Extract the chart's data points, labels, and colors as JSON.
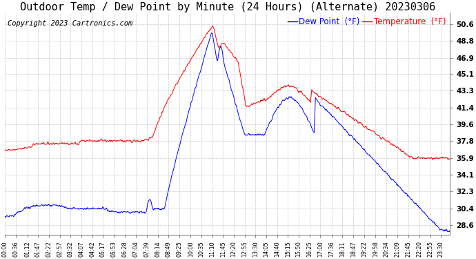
{
  "title": "Outdoor Temp / Dew Point by Minute (24 Hours) (Alternate) 20230306",
  "copyright": "Copyright 2023 Cartronics.com",
  "legend_dew": "Dew Point  (°F)",
  "legend_temp": "Temperature  (°F)",
  "yticks": [
    28.6,
    30.4,
    32.3,
    34.1,
    35.9,
    37.8,
    39.6,
    41.4,
    43.3,
    45.1,
    46.9,
    48.8,
    50.6
  ],
  "ylim": [
    27.5,
    51.8
  ],
  "temp_color": "red",
  "dew_color": "blue",
  "background_color": "#ffffff",
  "grid_color": "#bbbbbb",
  "title_fontsize": 11,
  "copyright_fontsize": 7.5,
  "legend_fontsize": 8.5,
  "xtick_labels": [
    "00:00",
    "00:36",
    "01:12",
    "01:47",
    "02:22",
    "02:57",
    "03:32",
    "04:07",
    "04:42",
    "05:17",
    "05:53",
    "06:28",
    "07:04",
    "07:39",
    "08:14",
    "08:49",
    "09:25",
    "10:00",
    "10:35",
    "11:10",
    "11:45",
    "12:20",
    "12:55",
    "13:30",
    "14:05",
    "14:40",
    "15:15",
    "15:50",
    "16:25",
    "17:00",
    "17:36",
    "18:11",
    "18:47",
    "19:22",
    "19:58",
    "20:34",
    "21:09",
    "21:45",
    "22:20",
    "22:55",
    "23:30"
  ],
  "xtick_minutes": [
    0,
    36,
    72,
    107,
    142,
    177,
    212,
    247,
    282,
    317,
    353,
    388,
    424,
    459,
    494,
    529,
    565,
    600,
    635,
    670,
    705,
    740,
    775,
    810,
    845,
    880,
    915,
    950,
    985,
    1020,
    1056,
    1091,
    1127,
    1162,
    1198,
    1234,
    1269,
    1305,
    1340,
    1375,
    1410
  ]
}
